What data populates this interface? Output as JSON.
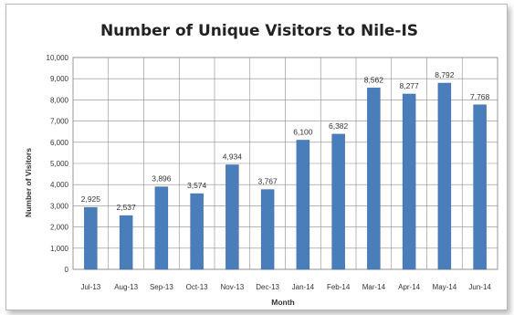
{
  "chart_data": {
    "type": "bar",
    "title": "Number of Unique Visitors to Nile-IS",
    "xlabel": "Month",
    "ylabel": "Number of Visitors",
    "categories": [
      "Jul-13",
      "Aug-13",
      "Sep-13",
      "Oct-13",
      "Nov-13",
      "Dec-13",
      "Jan-14",
      "Feb-14",
      "Mar-14",
      "Apr-14",
      "May-14",
      "Jun-14"
    ],
    "values": [
      2925,
      2537,
      3896,
      3574,
      4934,
      3767,
      6100,
      6382,
      8562,
      8277,
      8792,
      7768
    ],
    "data_labels": [
      "2,925",
      "2,537",
      "3,896",
      "3,574",
      "4,934",
      "3,767",
      "6,100",
      "6,382",
      "8,562",
      "8,277",
      "8,792",
      "7,768"
    ],
    "ylim": [
      0,
      10000
    ],
    "yticks": [
      0,
      1000,
      2000,
      3000,
      4000,
      5000,
      6000,
      7000,
      8000,
      9000,
      10000
    ],
    "ytick_labels": [
      "0",
      "1,000",
      "2,000",
      "3,000",
      "4,000",
      "5,000",
      "6,000",
      "7,000",
      "8,000",
      "9,000",
      "10,000"
    ],
    "grid": "both",
    "legend": "none",
    "colors": {
      "bar": "#4a7ebb",
      "bar_edge": "#3a6aa5",
      "grid": "#8c8c8c",
      "axis": "#808080"
    }
  }
}
